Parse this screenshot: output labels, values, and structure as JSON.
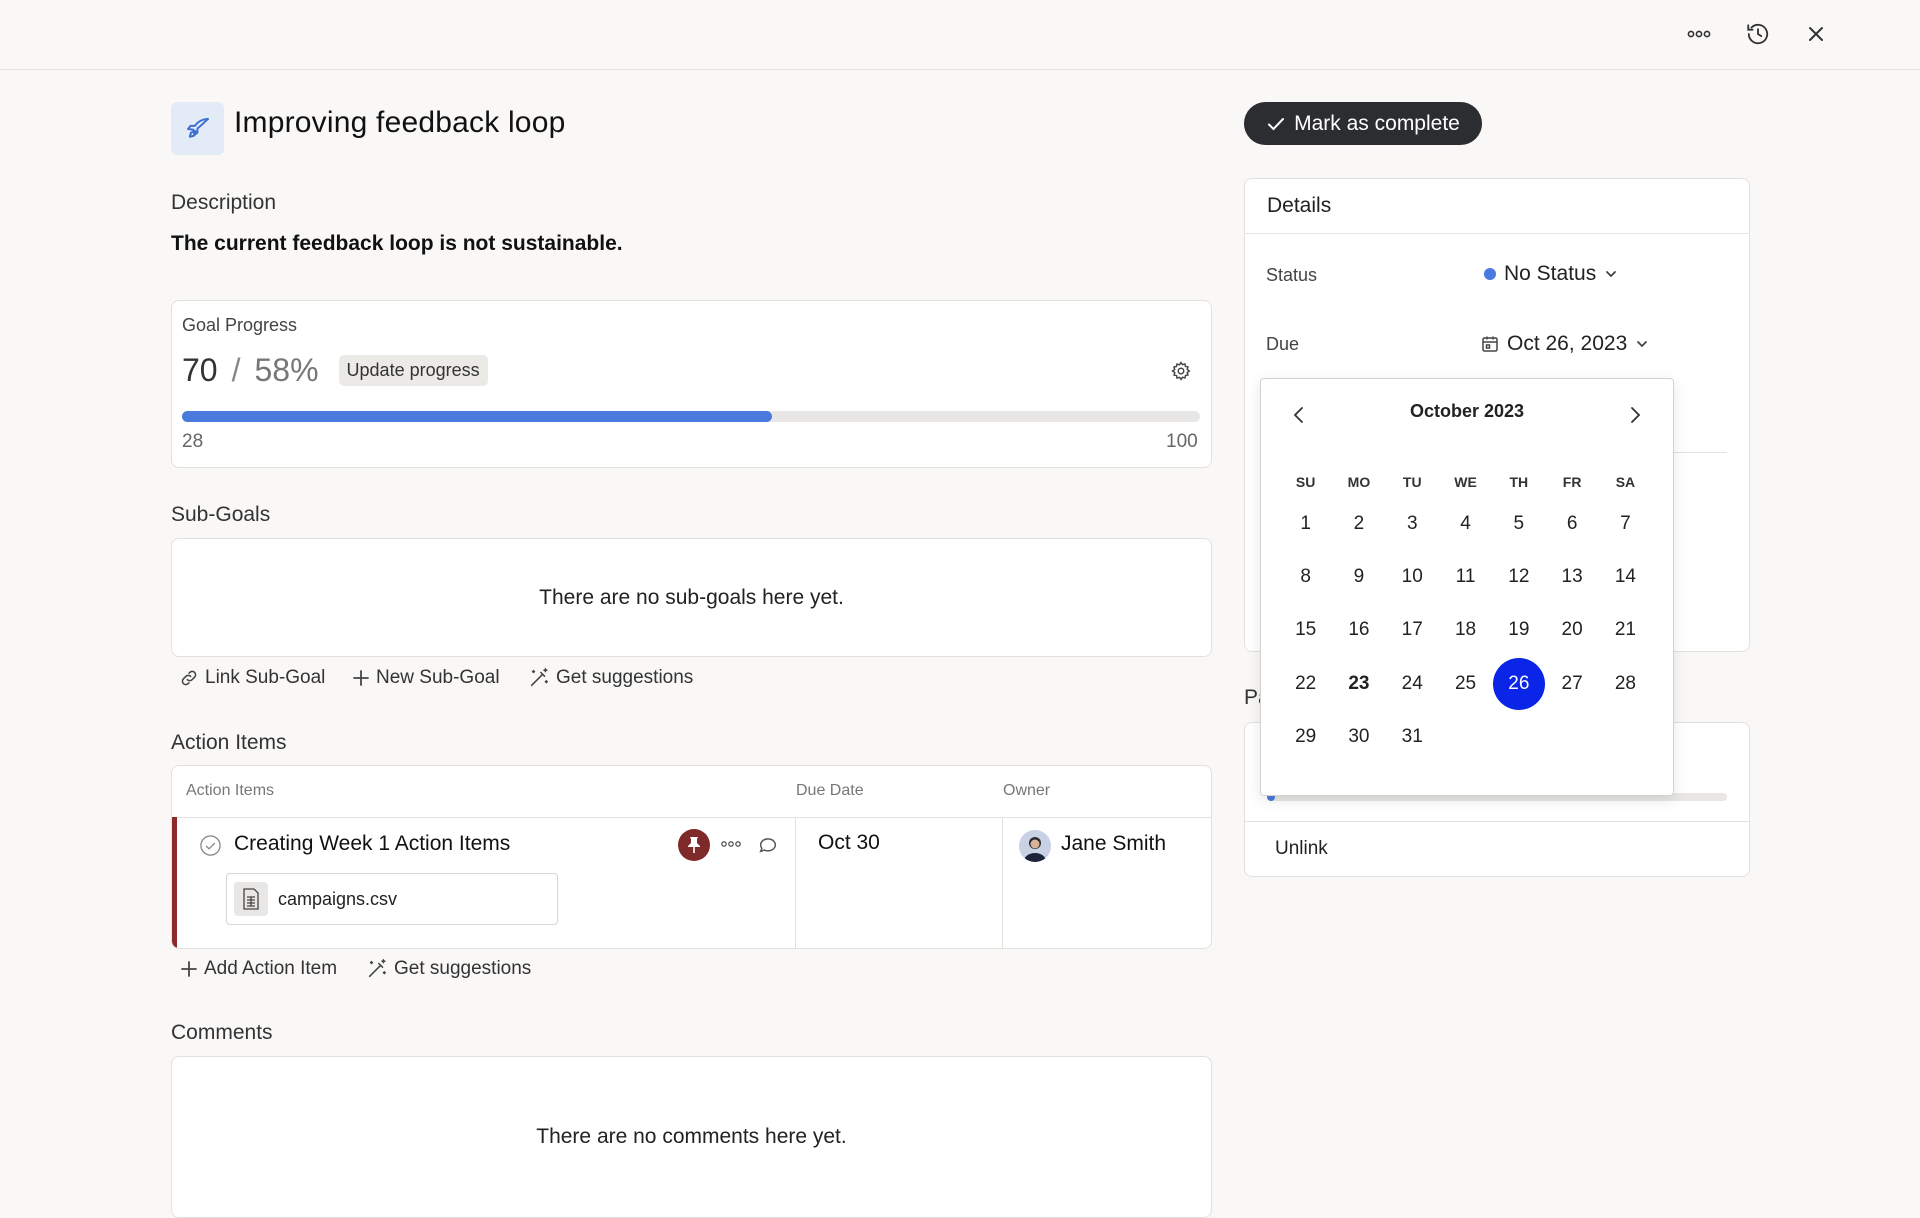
{
  "topbar": {
    "icons": [
      "more-icon",
      "history-icon",
      "close-icon"
    ]
  },
  "goal": {
    "title": "Improving feedback loop",
    "description_label": "Description",
    "description": "The current feedback loop is not sustainable."
  },
  "progress": {
    "label": "Goal Progress",
    "current": "70",
    "separator": "/",
    "percent": "58%",
    "update_label": "Update progress",
    "min": "28",
    "max": "100",
    "fill_fraction": 0.58
  },
  "subgoals": {
    "label": "Sub-Goals",
    "empty": "There are no sub-goals here yet.",
    "link": "Link Sub-Goal",
    "new": "New Sub-Goal",
    "suggest": "Get suggestions"
  },
  "actions": {
    "label": "Action Items",
    "columns": [
      "Action Items",
      "Due Date",
      "Owner"
    ],
    "rows": [
      {
        "title": "Creating Week 1 Action Items",
        "attachment": "campaigns.csv",
        "due": "Oct 30",
        "owner": "Jane Smith"
      }
    ],
    "add": "Add Action Item",
    "suggest": "Get suggestions"
  },
  "comments": {
    "label": "Comments",
    "empty": "There are no comments here yet."
  },
  "mark_complete": "Mark as complete",
  "details": {
    "title": "Details",
    "status_label": "Status",
    "status_value": "No Status",
    "status_color": "#4a7ade",
    "due_label": "Due",
    "due_value": "Oct 26, 2023"
  },
  "second_card": {
    "partial_label": "Pa",
    "unlink": "Unlink"
  },
  "calendar": {
    "month": "October 2023",
    "weekdays": [
      "SU",
      "MO",
      "TU",
      "WE",
      "TH",
      "FR",
      "SA"
    ],
    "first_weekday_index": 0,
    "days_in_month": 31,
    "today": 23,
    "selected": 26,
    "selected_color": "#0a24e8"
  }
}
